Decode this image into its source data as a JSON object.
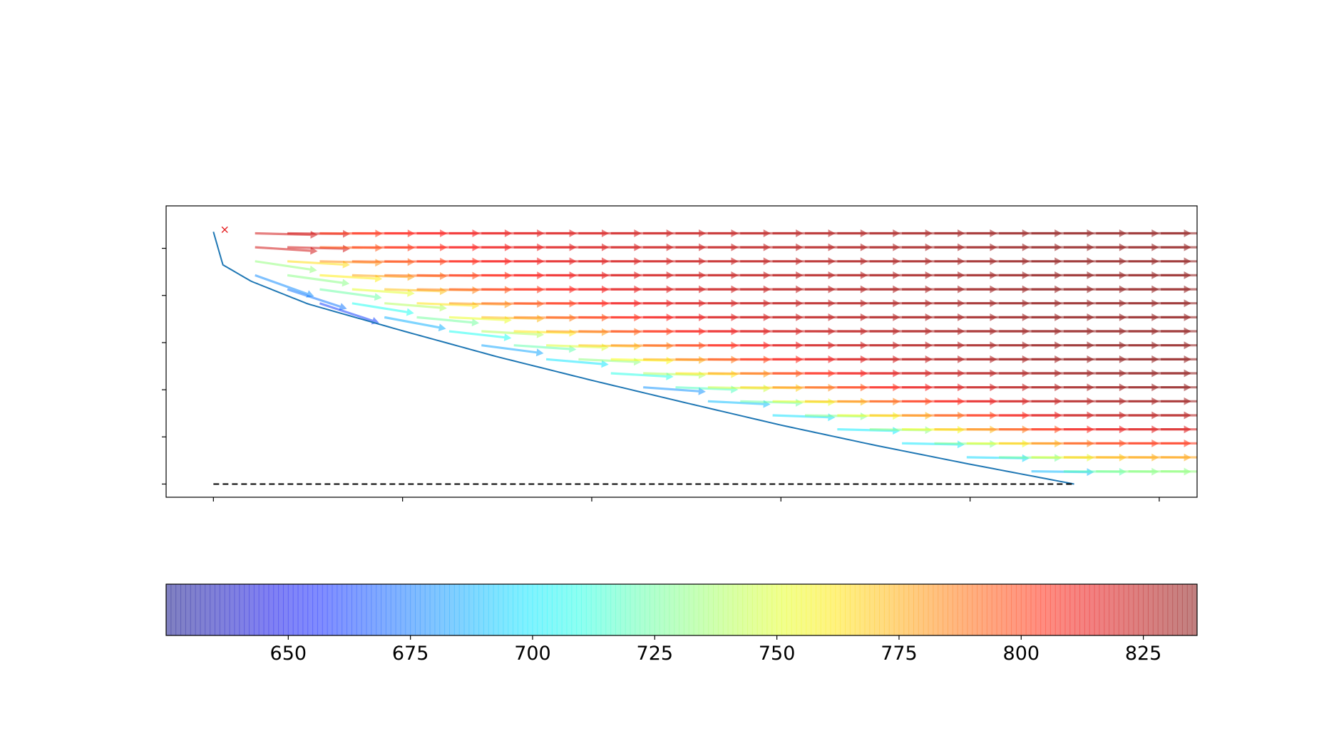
{
  "chart_data": [
    {
      "type": "quiver",
      "title": "",
      "xlabel": "",
      "ylabel": "",
      "x_tick_labels_visible": false,
      "y_tick_labels_visible": false,
      "x_ticks": [
        0,
        1,
        2,
        3,
        4,
        5
      ],
      "y_ticks": [
        0,
        1,
        2,
        3,
        4,
        5
      ],
      "xlim": [
        -0.25,
        5.2
      ],
      "ylim": [
        -0.28,
        5.9
      ],
      "start_marker": {
        "x": 0.06,
        "y": 5.4,
        "symbol": "×",
        "color": "#e41a1c"
      },
      "boundary_curve": {
        "color": "#1f77b4",
        "x_end": 4.55,
        "y_start": 5.35,
        "x": [
          0,
          0.05,
          0.2,
          0.5,
          1.0,
          1.5,
          2.0,
          2.5,
          3.0,
          3.5,
          4.0,
          4.55
        ],
        "y": [
          5.35,
          4.65,
          4.3,
          3.82,
          3.25,
          2.7,
          2.2,
          1.72,
          1.25,
          0.82,
          0.42,
          0.0
        ]
      },
      "baseline": {
        "x": [
          0,
          4.55
        ],
        "y": [
          0,
          0
        ],
        "style": "dashed",
        "color": "#000000"
      },
      "arrow_grid": {
        "x_start": 0.22,
        "x_step": 0.171,
        "x_count": 29,
        "y_start": 0.27,
        "y_step": 0.297,
        "y_count": 18,
        "arrow_length": 0.13,
        "direction": "mostly +x; tilted downward near the curved boundary",
        "color_value": "increases with distance from the curved boundary, from ~625 at the top-left corner to ~835 at the bottom-right"
      }
    },
    {
      "type": "colorbar",
      "orientation": "horizontal",
      "colormap": "jet",
      "alpha": 0.5,
      "range": [
        625,
        836
      ],
      "ticks": [
        650,
        675,
        700,
        725,
        750,
        775,
        800,
        825
      ],
      "tick_labels": [
        "650",
        "675",
        "700",
        "725",
        "750",
        "775",
        "800",
        "825"
      ]
    }
  ]
}
